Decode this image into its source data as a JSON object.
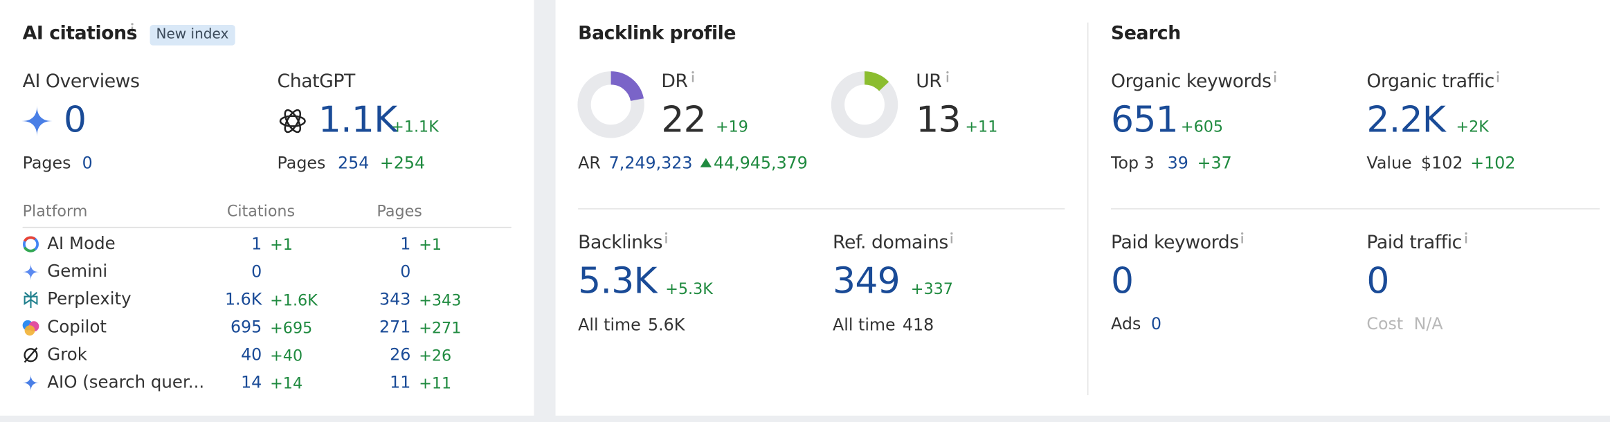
{
  "ai_citations": {
    "title": "AI citations",
    "badge": "New index",
    "ai_overviews": {
      "label": "AI Overviews",
      "value": "0",
      "pages_label": "Pages",
      "pages": "0"
    },
    "chatgpt": {
      "label": "ChatGPT",
      "value": "1.1K",
      "change": "+1.1K",
      "pages_label": "Pages",
      "pages": "254",
      "pages_change": "+254"
    },
    "platforms": {
      "headers": [
        "Platform",
        "Citations",
        "Pages"
      ],
      "rows": [
        {
          "name": "AI Mode",
          "citations": "1",
          "citations_change": "+1",
          "pages": "1",
          "pages_change": "+1"
        },
        {
          "name": "Gemini",
          "citations": "0",
          "pages": "0"
        },
        {
          "name": "Perplexity",
          "citations": "1.6K",
          "citations_change": "+1.6K",
          "pages": "343",
          "pages_change": "+343"
        },
        {
          "name": "Copilot",
          "citations": "695",
          "citations_change": "+695",
          "pages": "271",
          "pages_change": "+271"
        },
        {
          "name": "Grok",
          "citations": "40",
          "citations_change": "+40",
          "pages": "26",
          "pages_change": "+26"
        },
        {
          "name": "AIO (search quer...",
          "citations": "14",
          "citations_change": "+14",
          "pages": "11",
          "pages_change": "+11"
        }
      ]
    }
  },
  "backlink_profile": {
    "title": "Backlink profile",
    "dr": {
      "label": "DR",
      "value": 22,
      "change": "+19"
    },
    "ur": {
      "label": "UR",
      "value": 13,
      "change": "+11"
    },
    "ar": {
      "label": "AR",
      "value": "7,249,323",
      "change": "44,945,379"
    },
    "backlinks": {
      "label": "Backlinks",
      "value": "5.3K",
      "change": "+5.3K",
      "all_time_label": "All time",
      "all_time": "5.6K"
    },
    "ref_domains": {
      "label": "Ref. domains",
      "value": "349",
      "change": "+337",
      "all_time_label": "All time",
      "all_time": "418"
    }
  },
  "search": {
    "title": "Search",
    "organic_keywords": {
      "label": "Organic keywords",
      "value": "651",
      "change": "+605",
      "sub_label": "Top 3",
      "sub_value": "39",
      "sub_change": "+37"
    },
    "organic_traffic": {
      "label": "Organic traffic",
      "value": "2.2K",
      "change": "+2K",
      "sub_label": "Value",
      "sub_value": "$102",
      "sub_change": "+102"
    },
    "paid_keywords": {
      "label": "Paid keywords",
      "value": "0",
      "sub_label": "Ads",
      "sub_value": "0"
    },
    "paid_traffic": {
      "label": "Paid traffic",
      "value": "0",
      "sub_label": "Cost",
      "sub_value": "N/A"
    }
  }
}
